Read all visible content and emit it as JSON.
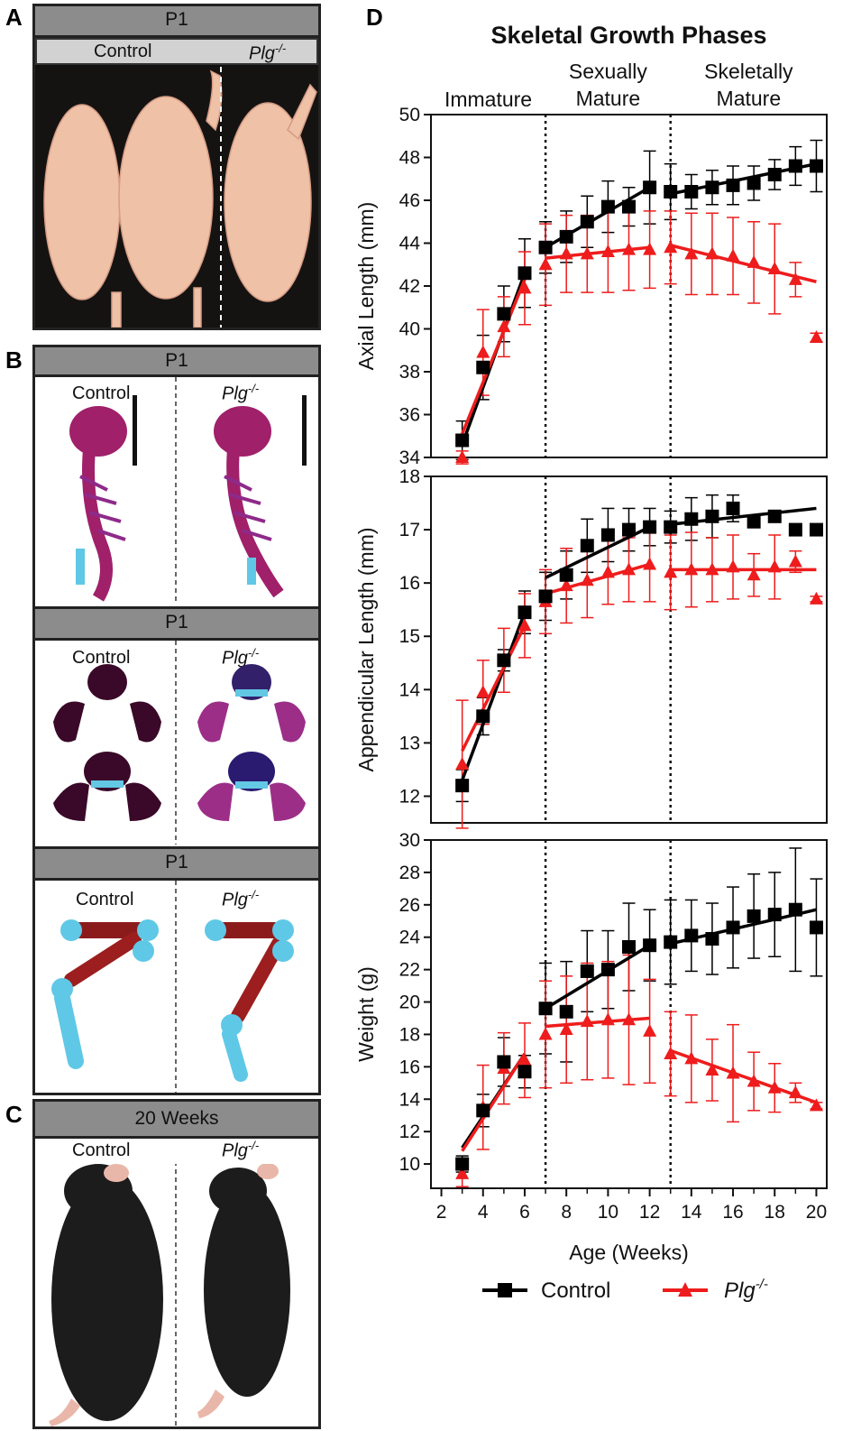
{
  "panels": {
    "A": {
      "letter": "A",
      "header": "P1",
      "left": "Control",
      "right_base": "Plg",
      "right_sup": "-/-"
    },
    "B": {
      "letter": "B",
      "sections": [
        {
          "header": "P1",
          "left": "Control",
          "right_base": "Plg",
          "right_sup": "-/-"
        },
        {
          "header": "P1",
          "left": "Control",
          "right_base": "Plg",
          "right_sup": "-/-"
        },
        {
          "header": "P1",
          "left": "Control",
          "right_base": "Plg",
          "right_sup": "-/-"
        }
      ]
    },
    "C": {
      "letter": "C",
      "header": "20 Weeks",
      "left": "Control",
      "right_base": "Plg",
      "right_sup": "-/-"
    },
    "D": {
      "letter": "D"
    }
  },
  "colors": {
    "control": "#000000",
    "plg": "#ee1c1c",
    "skin": "#f0c2a8",
    "bone": "#a0206a",
    "cartilage": "#5fc8e6",
    "fur": "#1c1c1c"
  },
  "chart_data": {
    "type": "line",
    "title": "Skeletal Growth Phases",
    "phases": [
      "Immature",
      "Sexually Mature",
      "Skeletally Mature"
    ],
    "phase_boundaries_weeks": [
      7,
      13
    ],
    "xlabel": "Age (Weeks)",
    "xlim": [
      1.5,
      20.5
    ],
    "xticks": [
      2,
      4,
      6,
      8,
      10,
      12,
      14,
      16,
      18,
      20
    ],
    "legend": [
      {
        "name": "Control",
        "marker": "square",
        "color": "#000000"
      },
      {
        "name": "Plg",
        "sup": "-/-",
        "marker": "triangle",
        "color": "#ee1c1c"
      }
    ],
    "legend_position": "bottom",
    "subplots": [
      {
        "ylabel": "Axial Length (mm)",
        "ylim": [
          34,
          50
        ],
        "yticks": [
          34,
          36,
          38,
          40,
          42,
          44,
          46,
          48,
          50
        ],
        "series": [
          {
            "name": "Control",
            "x": [
              3,
              4,
              5,
              6,
              7,
              8,
              9,
              10,
              11,
              12,
              13,
              14,
              15,
              16,
              17,
              18,
              19,
              20
            ],
            "y": [
              34.8,
              38.2,
              40.7,
              42.6,
              43.8,
              44.3,
              45.0,
              45.7,
              45.7,
              46.6,
              46.4,
              46.4,
              46.6,
              46.7,
              46.8,
              47.2,
              47.6,
              47.6
            ],
            "err": [
              0.9,
              1.5,
              1.3,
              1.6,
              1.2,
              1.2,
              1.2,
              1.2,
              0.9,
              1.7,
              1.3,
              0.8,
              0.8,
              0.9,
              0.8,
              0.7,
              0.9,
              1.2
            ]
          },
          {
            "name": "Plg-/-",
            "x": [
              3,
              4,
              5,
              6,
              7,
              8,
              9,
              10,
              11,
              12,
              13,
              14,
              15,
              16,
              17,
              18,
              19,
              20
            ],
            "y": [
              34.0,
              38.9,
              40.1,
              41.9,
              43.0,
              43.5,
              43.5,
              43.6,
              43.7,
              43.7,
              43.8,
              43.5,
              43.5,
              43.4,
              43.1,
              42.8,
              42.3,
              39.6
            ],
            "err": [
              0.3,
              2.0,
              1.4,
              1.7,
              1.9,
              1.8,
              1.8,
              1.9,
              1.9,
              1.8,
              1.7,
              1.9,
              1.9,
              1.8,
              1.9,
              2.1,
              0.8,
              0.2
            ]
          }
        ],
        "fit_lines": [
          {
            "series": "Control",
            "x": [
              3,
              6
            ],
            "y": [
              34.6,
              42.6
            ]
          },
          {
            "series": "Control",
            "x": [
              7,
              12
            ],
            "y": [
              43.8,
              46.6
            ]
          },
          {
            "series": "Control",
            "x": [
              13,
              20
            ],
            "y": [
              46.3,
              47.7
            ]
          },
          {
            "series": "Plg-/-",
            "x": [
              3,
              6
            ],
            "y": [
              35.1,
              42.3
            ]
          },
          {
            "series": "Plg-/-",
            "x": [
              7,
              12
            ],
            "y": [
              43.3,
              43.8
            ]
          },
          {
            "series": "Plg-/-",
            "x": [
              13,
              20
            ],
            "y": [
              43.9,
              42.2
            ]
          }
        ]
      },
      {
        "ylabel": "Appendicular Length (mm)",
        "ylim": [
          11.5,
          18
        ],
        "yticks": [
          12,
          13,
          14,
          15,
          16,
          17,
          18
        ],
        "series": [
          {
            "name": "Control",
            "x": [
              3,
              4,
              5,
              6,
              7,
              8,
              9,
              10,
              11,
              12,
              13,
              14,
              15,
              16,
              17,
              18,
              19,
              20
            ],
            "y": [
              12.2,
              13.5,
              14.55,
              15.45,
              15.75,
              16.15,
              16.7,
              16.9,
              17.0,
              17.05,
              17.05,
              17.2,
              17.25,
              17.4,
              17.15,
              17.25,
              17.0,
              17.0
            ],
            "err": [
              0.3,
              0.35,
              0.2,
              0.4,
              0.45,
              0.45,
              0.5,
              0.5,
              0.4,
              0.35,
              0.3,
              0.4,
              0.4,
              0.25,
              0.1,
              0.05,
              0.05,
              0.05
            ]
          },
          {
            "name": "Plg-/-",
            "x": [
              3,
              4,
              5,
              6,
              7,
              8,
              9,
              10,
              11,
              12,
              13,
              14,
              15,
              16,
              17,
              18,
              19,
              20
            ],
            "y": [
              12.6,
              13.95,
              14.55,
              15.2,
              15.65,
              15.95,
              16.05,
              16.2,
              16.25,
              16.35,
              16.2,
              16.25,
              16.25,
              16.3,
              16.15,
              16.3,
              16.4,
              15.7
            ],
            "err": [
              1.2,
              0.6,
              0.6,
              0.6,
              0.6,
              0.7,
              0.7,
              0.6,
              0.6,
              0.7,
              0.7,
              0.7,
              0.6,
              0.6,
              0.4,
              0.6,
              0.2,
              0.05
            ]
          }
        ],
        "fit_lines": [
          {
            "series": "Control",
            "x": [
              3,
              6
            ],
            "y": [
              12.3,
              15.45
            ]
          },
          {
            "series": "Control",
            "x": [
              7,
              12
            ],
            "y": [
              16.1,
              17.05
            ]
          },
          {
            "series": "Control",
            "x": [
              13,
              20
            ],
            "y": [
              17.1,
              17.4
            ]
          },
          {
            "series": "Plg-/-",
            "x": [
              3,
              6
            ],
            "y": [
              12.85,
              15.2
            ]
          },
          {
            "series": "Plg-/-",
            "x": [
              7,
              12
            ],
            "y": [
              15.8,
              16.35
            ]
          },
          {
            "series": "Plg-/-",
            "x": [
              13,
              20
            ],
            "y": [
              16.25,
              16.25
            ]
          }
        ]
      },
      {
        "ylabel": "Weight (g)",
        "ylim": [
          8.5,
          30
        ],
        "yticks": [
          10,
          12,
          14,
          16,
          18,
          20,
          22,
          24,
          26,
          28,
          30
        ],
        "series": [
          {
            "name": "Control",
            "x": [
              3,
              4,
              5,
              6,
              7,
              8,
              9,
              10,
              11,
              12,
              13,
              14,
              15,
              16,
              17,
              18,
              19,
              20
            ],
            "y": [
              10.0,
              13.3,
              16.3,
              15.7,
              19.6,
              19.4,
              21.9,
              22.0,
              23.4,
              23.5,
              23.7,
              24.1,
              23.9,
              24.6,
              25.3,
              25.4,
              25.7,
              24.6
            ],
            "err": [
              0.5,
              1.0,
              1.5,
              1.0,
              2.8,
              3.1,
              2.5,
              2.4,
              2.7,
              2.2,
              2.6,
              2.2,
              2.2,
              2.5,
              2.6,
              2.6,
              3.8,
              3.0
            ]
          },
          {
            "name": "Plg-/-",
            "x": [
              3,
              4,
              5,
              6,
              7,
              8,
              9,
              10,
              11,
              12,
              13,
              14,
              15,
              16,
              17,
              18,
              19,
              20
            ],
            "y": [
              9.4,
              13.5,
              15.9,
              16.4,
              18.0,
              18.3,
              18.8,
              18.9,
              18.9,
              18.2,
              16.8,
              16.5,
              15.8,
              15.6,
              15.1,
              14.7,
              14.4,
              13.6
            ],
            "err": [
              0.8,
              2.6,
              2.2,
              2.3,
              3.3,
              3.3,
              3.6,
              3.6,
              4.0,
              3.2,
              2.6,
              2.7,
              1.9,
              3.0,
              1.8,
              1.5,
              0.6,
              0.2
            ]
          }
        ],
        "fit_lines": [
          {
            "series": "Control",
            "x": [
              3,
              6
            ],
            "y": [
              11.0,
              16.8
            ]
          },
          {
            "series": "Control",
            "x": [
              7,
              12
            ],
            "y": [
              19.6,
              23.5
            ]
          },
          {
            "series": "Control",
            "x": [
              13,
              20
            ],
            "y": [
              23.6,
              25.7
            ]
          },
          {
            "series": "Plg-/-",
            "x": [
              3,
              6
            ],
            "y": [
              10.8,
              16.8
            ]
          },
          {
            "series": "Plg-/-",
            "x": [
              7,
              12
            ],
            "y": [
              18.5,
              19.0
            ]
          },
          {
            "series": "Plg-/-",
            "x": [
              13,
              20
            ],
            "y": [
              17.0,
              13.8
            ]
          }
        ]
      }
    ]
  }
}
